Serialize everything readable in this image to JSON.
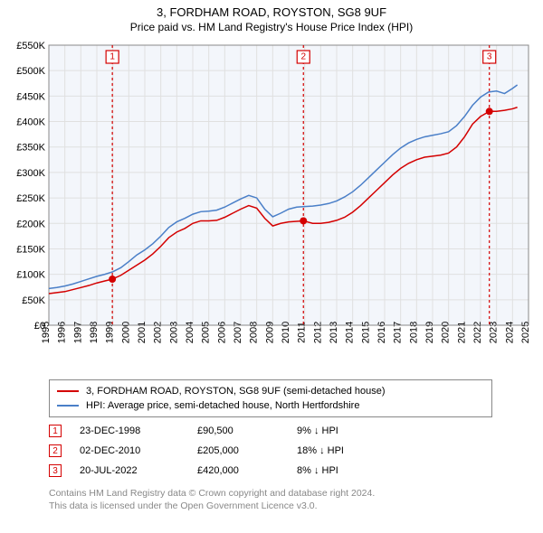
{
  "title": {
    "line1": "3, FORDHAM ROAD, ROYSTON, SG8 9UF",
    "line2": "Price paid vs. HM Land Registry's House Price Index (HPI)"
  },
  "chart": {
    "type": "line",
    "plot_bg": "#f3f6fb",
    "page_bg": "#ffffff",
    "grid_color": "#e0e0e0",
    "axis_color": "#888888",
    "ylim": [
      0,
      550000
    ],
    "ytick_step": 50000,
    "ytick_labels": [
      "£0",
      "£50K",
      "£100K",
      "£150K",
      "£200K",
      "£250K",
      "£300K",
      "£350K",
      "£400K",
      "£450K",
      "£500K",
      "£550K"
    ],
    "x_start": 1995,
    "x_end": 2025,
    "xtick_step": 1,
    "xtick_labels": [
      "1995",
      "1996",
      "1997",
      "1998",
      "1999",
      "2000",
      "2001",
      "2002",
      "2003",
      "2004",
      "2005",
      "2006",
      "2007",
      "2008",
      "2009",
      "2010",
      "2011",
      "2012",
      "2013",
      "2014",
      "2015",
      "2016",
      "2017",
      "2018",
      "2019",
      "2020",
      "2021",
      "2022",
      "2023",
      "2024",
      "2025"
    ],
    "series": [
      {
        "name": "property",
        "label": "3, FORDHAM ROAD, ROYSTON, SG8 9UF (semi-detached house)",
        "color": "#d40000",
        "line_width": 1.5,
        "data": [
          [
            1995.0,
            62000
          ],
          [
            1995.5,
            64000
          ],
          [
            1996.0,
            66000
          ],
          [
            1996.5,
            70000
          ],
          [
            1997.0,
            74000
          ],
          [
            1997.5,
            78000
          ],
          [
            1998.0,
            83000
          ],
          [
            1998.5,
            87000
          ],
          [
            1998.97,
            90500
          ],
          [
            1999.5,
            98000
          ],
          [
            2000.0,
            108000
          ],
          [
            2000.5,
            118000
          ],
          [
            2001.0,
            128000
          ],
          [
            2001.5,
            140000
          ],
          [
            2002.0,
            155000
          ],
          [
            2002.5,
            172000
          ],
          [
            2003.0,
            183000
          ],
          [
            2003.5,
            190000
          ],
          [
            2004.0,
            200000
          ],
          [
            2004.5,
            205000
          ],
          [
            2005.0,
            205000
          ],
          [
            2005.5,
            206000
          ],
          [
            2006.0,
            212000
          ],
          [
            2006.5,
            220000
          ],
          [
            2007.0,
            228000
          ],
          [
            2007.5,
            235000
          ],
          [
            2008.0,
            230000
          ],
          [
            2008.5,
            210000
          ],
          [
            2009.0,
            195000
          ],
          [
            2009.5,
            200000
          ],
          [
            2010.0,
            203000
          ],
          [
            2010.5,
            204000
          ],
          [
            2010.92,
            205000
          ],
          [
            2011.5,
            200000
          ],
          [
            2012.0,
            200000
          ],
          [
            2012.5,
            202000
          ],
          [
            2013.0,
            206000
          ],
          [
            2013.5,
            212000
          ],
          [
            2014.0,
            222000
          ],
          [
            2014.5,
            235000
          ],
          [
            2015.0,
            250000
          ],
          [
            2015.5,
            265000
          ],
          [
            2016.0,
            280000
          ],
          [
            2016.5,
            295000
          ],
          [
            2017.0,
            308000
          ],
          [
            2017.5,
            318000
          ],
          [
            2018.0,
            325000
          ],
          [
            2018.5,
            330000
          ],
          [
            2019.0,
            332000
          ],
          [
            2019.5,
            334000
          ],
          [
            2020.0,
            338000
          ],
          [
            2020.5,
            350000
          ],
          [
            2021.0,
            370000
          ],
          [
            2021.5,
            395000
          ],
          [
            2022.0,
            410000
          ],
          [
            2022.55,
            420000
          ],
          [
            2023.0,
            420000
          ],
          [
            2023.5,
            422000
          ],
          [
            2024.0,
            425000
          ],
          [
            2024.3,
            428000
          ]
        ]
      },
      {
        "name": "hpi",
        "label": "HPI: Average price, semi-detached house, North Hertfordshire",
        "color": "#4a7fc8",
        "line_width": 1.5,
        "data": [
          [
            1995.0,
            72000
          ],
          [
            1995.5,
            74000
          ],
          [
            1996.0,
            77000
          ],
          [
            1996.5,
            81000
          ],
          [
            1997.0,
            86000
          ],
          [
            1997.5,
            91000
          ],
          [
            1998.0,
            96000
          ],
          [
            1998.5,
            100000
          ],
          [
            1999.0,
            105000
          ],
          [
            1999.5,
            113000
          ],
          [
            2000.0,
            125000
          ],
          [
            2000.5,
            138000
          ],
          [
            2001.0,
            148000
          ],
          [
            2001.5,
            160000
          ],
          [
            2002.0,
            175000
          ],
          [
            2002.5,
            192000
          ],
          [
            2003.0,
            203000
          ],
          [
            2003.5,
            210000
          ],
          [
            2004.0,
            218000
          ],
          [
            2004.5,
            223000
          ],
          [
            2005.0,
            224000
          ],
          [
            2005.5,
            226000
          ],
          [
            2006.0,
            232000
          ],
          [
            2006.5,
            240000
          ],
          [
            2007.0,
            248000
          ],
          [
            2007.5,
            255000
          ],
          [
            2008.0,
            250000
          ],
          [
            2008.5,
            228000
          ],
          [
            2009.0,
            213000
          ],
          [
            2009.5,
            220000
          ],
          [
            2010.0,
            228000
          ],
          [
            2010.5,
            232000
          ],
          [
            2011.0,
            233000
          ],
          [
            2011.5,
            234000
          ],
          [
            2012.0,
            236000
          ],
          [
            2012.5,
            239000
          ],
          [
            2013.0,
            244000
          ],
          [
            2013.5,
            252000
          ],
          [
            2014.0,
            262000
          ],
          [
            2014.5,
            275000
          ],
          [
            2015.0,
            290000
          ],
          [
            2015.5,
            305000
          ],
          [
            2016.0,
            320000
          ],
          [
            2016.5,
            335000
          ],
          [
            2017.0,
            348000
          ],
          [
            2017.5,
            358000
          ],
          [
            2018.0,
            365000
          ],
          [
            2018.5,
            370000
          ],
          [
            2019.0,
            373000
          ],
          [
            2019.5,
            376000
          ],
          [
            2020.0,
            380000
          ],
          [
            2020.5,
            392000
          ],
          [
            2021.0,
            410000
          ],
          [
            2021.5,
            432000
          ],
          [
            2022.0,
            448000
          ],
          [
            2022.5,
            458000
          ],
          [
            2023.0,
            460000
          ],
          [
            2023.5,
            455000
          ],
          [
            2024.0,
            465000
          ],
          [
            2024.3,
            472000
          ]
        ]
      }
    ],
    "events": [
      {
        "id": "1",
        "year": 1998.97,
        "date": "23-DEC-1998",
        "price": "£90,500",
        "delta": "9% ↓ HPI",
        "color": "#d40000"
      },
      {
        "id": "2",
        "year": 2010.92,
        "date": "02-DEC-2010",
        "price": "£205,000",
        "delta": "18% ↓ HPI",
        "color": "#d40000"
      },
      {
        "id": "3",
        "year": 2022.55,
        "date": "20-JUL-2022",
        "price": "£420,000",
        "delta": "8% ↓ HPI",
        "color": "#d40000"
      }
    ],
    "marker_box_size": 14,
    "point_radius": 4
  },
  "footnote": {
    "line1": "Contains HM Land Registry data © Crown copyright and database right 2024.",
    "line2": "This data is licensed under the Open Government Licence v3.0."
  }
}
